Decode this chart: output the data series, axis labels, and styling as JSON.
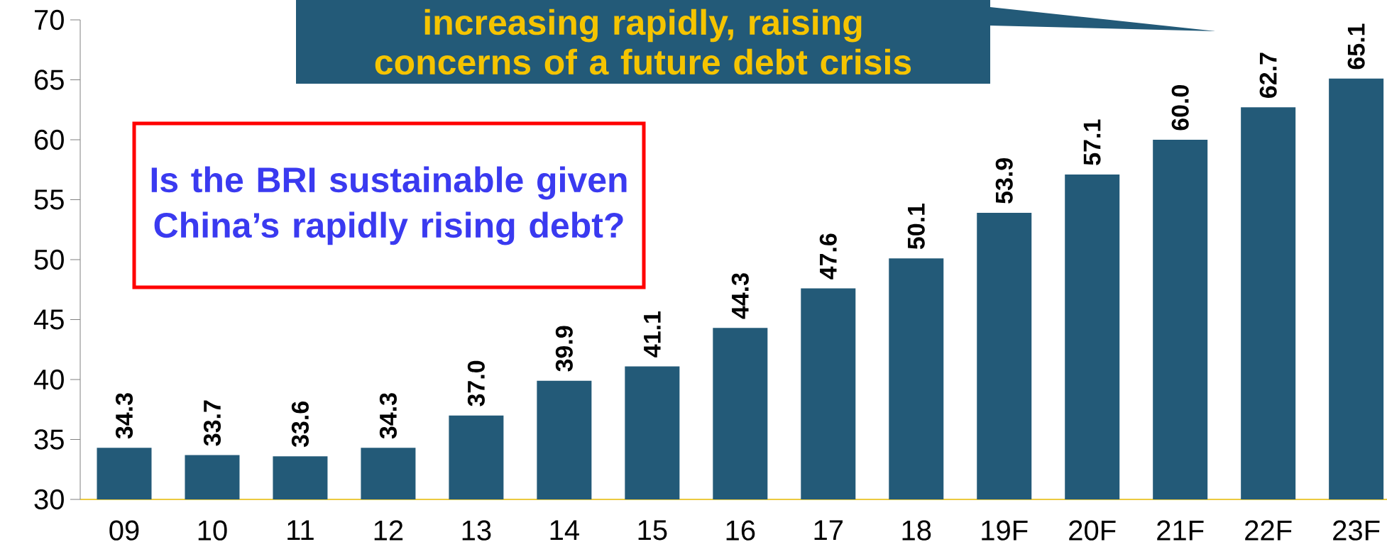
{
  "chart_data": {
    "type": "bar",
    "categories": [
      "09",
      "10",
      "11",
      "12",
      "13",
      "14",
      "15",
      "16",
      "17",
      "18",
      "19F",
      "20F",
      "21F",
      "22F",
      "23F"
    ],
    "values": [
      34.3,
      33.7,
      33.6,
      34.3,
      37.0,
      39.9,
      41.1,
      44.3,
      47.6,
      50.1,
      53.9,
      57.1,
      60.0,
      62.7,
      65.1
    ],
    "value_labels": [
      "34.3",
      "33.7",
      "33.6",
      "34.3",
      "37.0",
      "39.9",
      "41.1",
      "44.3",
      "47.6",
      "50.1",
      "53.9",
      "57.1",
      "60.0",
      "62.7",
      "65.1"
    ],
    "color": "#235a78",
    "ylim": [
      30,
      70
    ],
    "yticks": [
      30,
      35,
      40,
      45,
      50,
      55,
      60,
      65,
      70
    ],
    "grid": false,
    "annotations": [
      "increasing rapidly, raising concerns of a future debt crisis",
      "Is the BRI sustainable given China’s rapidly rising debt?"
    ]
  }
}
